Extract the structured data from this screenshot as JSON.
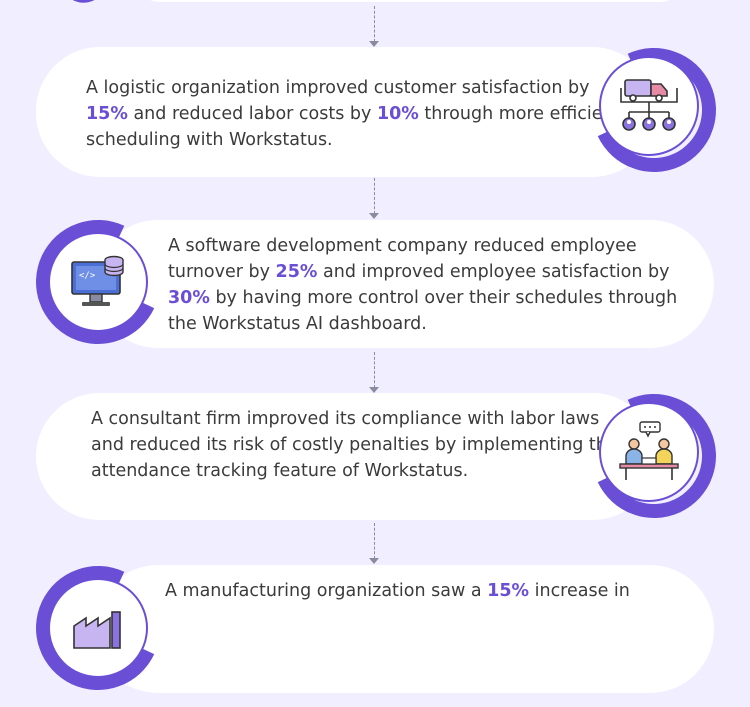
{
  "cards": [
    {
      "before": "A logistic organization improved customer satisfaction by ",
      "hl1": "15%",
      "mid": " and reduced labor costs by ",
      "hl2": "10%",
      "after": " through more efficient scheduling with Workstatus.",
      "icon": "truck-network-icon"
    },
    {
      "before": "A software development company reduced employee turnover by ",
      "hl1": "25%",
      "mid": " and improved employee satisfaction by ",
      "hl2": "30%",
      "after": " by having more control over their schedules through the Workstatus AI dashboard.",
      "icon": "monitor-database-icon"
    },
    {
      "text": "A consultant firm improved its compliance with labor laws and reduced its risk of costly penalties by implementing the attendance tracking feature of Workstatus.",
      "icon": "consultation-meeting-icon"
    },
    {
      "before": "A manufacturing organization saw a ",
      "hl1": "15%",
      "after": " increase in",
      "icon": "factory-icon"
    }
  ],
  "colors": {
    "background": "#f1efff",
    "accent": "#6a4fd6",
    "card": "#ffffff",
    "text": "#3b3b3b"
  }
}
